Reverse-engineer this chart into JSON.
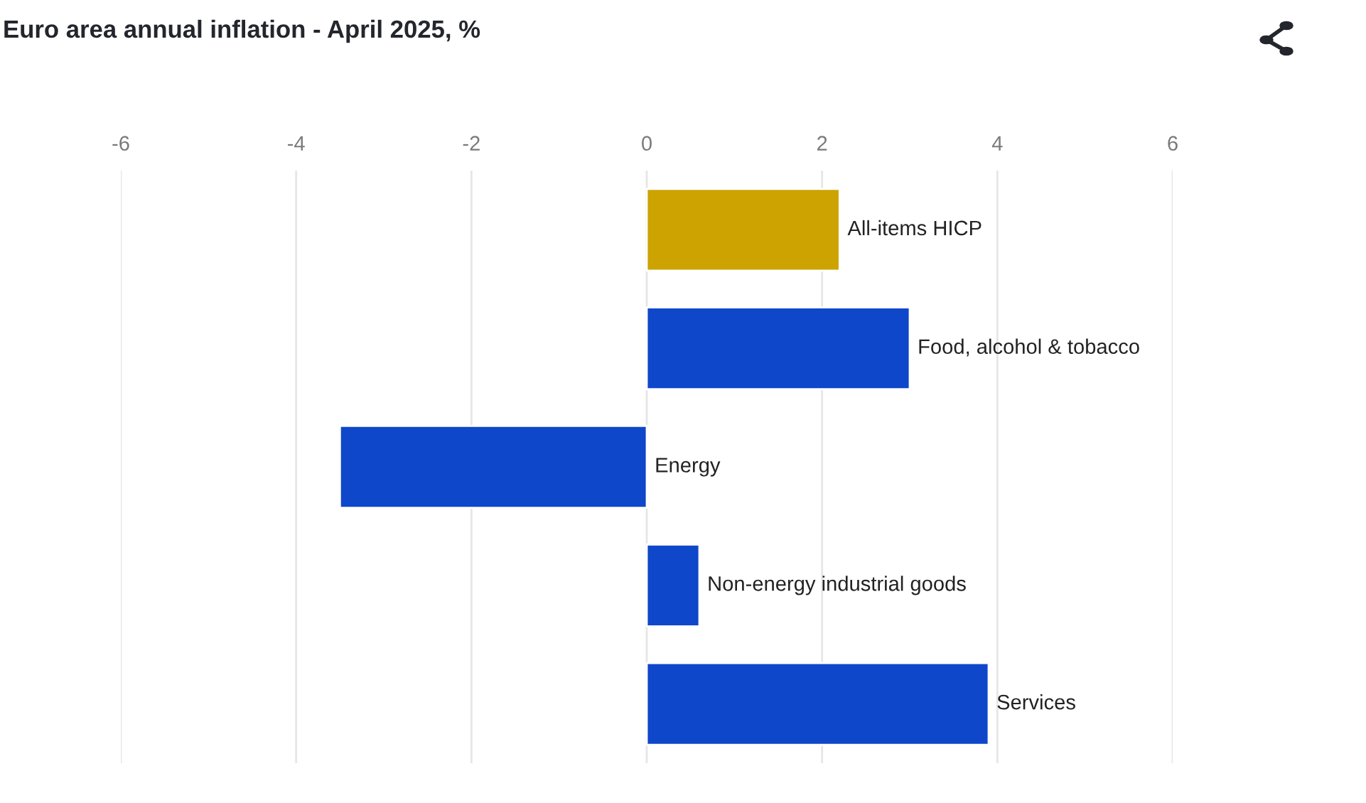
{
  "chart_data": {
    "type": "bar",
    "orientation": "horizontal",
    "title": "Euro area annual inflation - April 2025, %",
    "categories": [
      "All-items HICP",
      "Food, alcohol & tobacco",
      "Energy",
      "Non-energy industrial goods",
      "Services"
    ],
    "values": [
      2.2,
      3.0,
      -3.5,
      0.6,
      3.9
    ],
    "colors": [
      "#cca300",
      "#0f47cb",
      "#0f47cb",
      "#0f47cb",
      "#0f47cb"
    ],
    "xlim": [
      -6,
      6
    ],
    "xticks": [
      -6,
      -4,
      -2,
      0,
      2,
      4,
      6
    ],
    "grid": "x",
    "legend": false
  }
}
